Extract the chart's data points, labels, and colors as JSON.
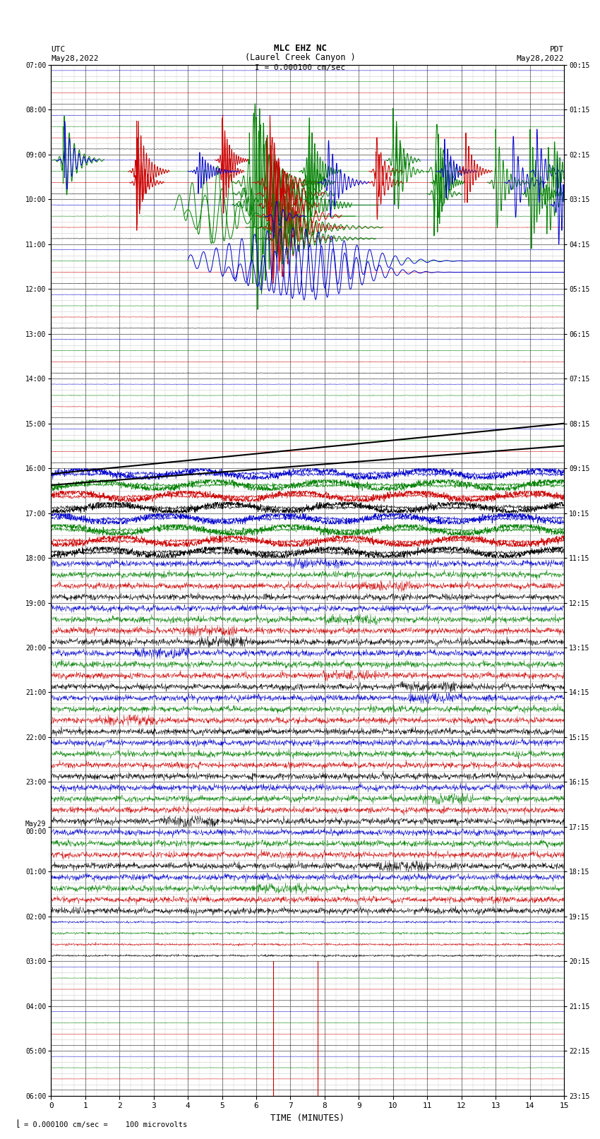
{
  "title_line1": "MLC EHZ NC",
  "title_line2": "(Laurel Creek Canyon )",
  "scale_label": "I = 0.000100 cm/sec",
  "left_header_line1": "UTC",
  "left_header_line2": "May28,2022",
  "right_header_line1": "PDT",
  "right_header_line2": "May28,2022",
  "bottom_label": "TIME (MINUTES)",
  "bottom_note": "= 0.000100 cm/sec =    100 microvolts",
  "xlim": [
    0,
    15
  ],
  "background": "#ffffff",
  "grid_major_color": "#888888",
  "grid_minor_color": "#cccccc",
  "colors": {
    "green": "#008000",
    "blue": "#0000cc",
    "red": "#cc0000",
    "black": "#000000"
  },
  "n_rows": 92,
  "left_tick_rows": [
    0,
    4,
    8,
    12,
    16,
    20,
    24,
    28,
    32,
    36,
    40,
    44,
    48,
    52,
    56,
    60,
    64,
    68,
    72,
    76,
    80,
    84,
    88,
    92
  ],
  "left_tick_labels": [
    "07:00",
    "08:00",
    "09:00",
    "10:00",
    "11:00",
    "12:00",
    "13:00",
    "14:00",
    "15:00",
    "16:00",
    "17:00",
    "18:00",
    "19:00",
    "20:00",
    "21:00",
    "22:00",
    "23:00",
    "May29\n00:00",
    "01:00",
    "02:00",
    "03:00",
    "04:00",
    "05:00",
    "06:00"
  ],
  "right_tick_labels": [
    "00:15",
    "01:15",
    "02:15",
    "03:15",
    "04:15",
    "05:15",
    "06:15",
    "07:15",
    "08:15",
    "09:15",
    "10:15",
    "11:15",
    "12:15",
    "13:15",
    "14:15",
    "15:15",
    "16:15",
    "17:15",
    "18:15",
    "19:15",
    "20:15",
    "21:15",
    "22:15",
    "23:15"
  ]
}
